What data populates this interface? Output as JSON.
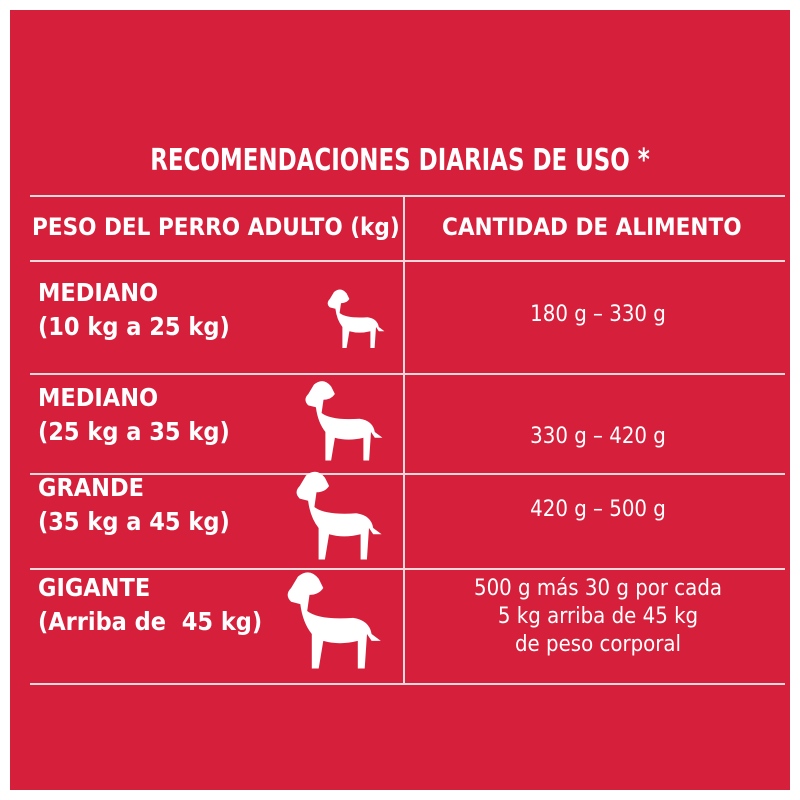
{
  "title": "RECOMENDACIONES DIARIAS DE USO *",
  "table": {
    "headers": [
      "PESO DEL PERRO ADULTO (kg)",
      "CANTIDAD DE ALIMENTO"
    ],
    "rows": [
      {
        "size": "MEDIANO",
        "range": "(10 kg a 25 kg)",
        "amount": [
          "180 g – 330 g"
        ]
      },
      {
        "size": "MEDIANO",
        "range": "(25 kg a 35 kg)",
        "amount": [
          "330 g – 420 g"
        ]
      },
      {
        "size": "GRANDE",
        "range": "(35 kg a 45 kg)",
        "amount": [
          "420 g – 500 g"
        ]
      },
      {
        "size": "GIGANTE",
        "range": "(Arriba de  45 kg)",
        "amount": [
          "500 g más 30 g por cada",
          "5 kg arriba de 45 kg",
          "de peso corporal"
        ]
      }
    ]
  }
}
